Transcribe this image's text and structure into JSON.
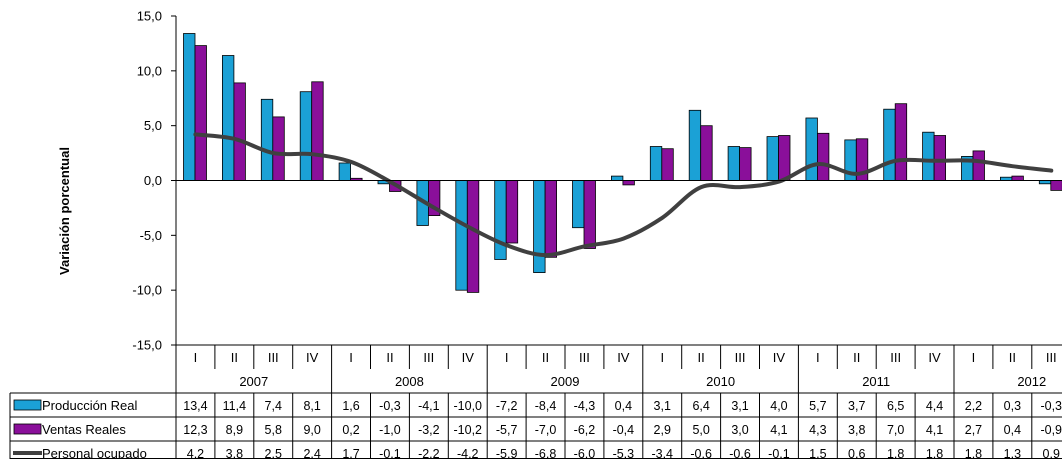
{
  "chart_data": {
    "type": "bar",
    "ylabel": "Variación porcentual",
    "ylim": [
      -15,
      15
    ],
    "yticks": [
      "15,0",
      "10,0",
      "5,0",
      "0,0",
      "-5,0",
      "-10,0",
      "-15,0"
    ],
    "quarter_labels": [
      "I",
      "II",
      "III",
      "IV",
      "I",
      "II",
      "III",
      "IV",
      "I",
      "II",
      "III",
      "IV",
      "I",
      "II",
      "III",
      "IV",
      "I",
      "II",
      "III",
      "IV",
      "I",
      "II",
      "III"
    ],
    "years": [
      {
        "label": "2007",
        "quarters": 4
      },
      {
        "label": "2008",
        "quarters": 4
      },
      {
        "label": "2009",
        "quarters": 4
      },
      {
        "label": "2010",
        "quarters": 4
      },
      {
        "label": "2011",
        "quarters": 4
      },
      {
        "label": "2012",
        "quarters": 3
      }
    ],
    "series": [
      {
        "name": "Producción Real",
        "kind": "bar",
        "color": "#1ba1d6",
        "values": [
          13.4,
          11.4,
          7.4,
          8.1,
          1.6,
          -0.3,
          -4.1,
          -10.0,
          -7.2,
          -8.4,
          -4.3,
          0.4,
          3.1,
          6.4,
          3.1,
          4.0,
          5.7,
          3.7,
          6.5,
          4.4,
          2.2,
          0.3,
          -0.3
        ],
        "labels": [
          "13,4",
          "11,4",
          "7,4",
          "8,1",
          "1,6",
          "-0,3",
          "-4,1",
          "-10,0",
          "-7,2",
          "-8,4",
          "-4,3",
          "0,4",
          "3,1",
          "6,4",
          "3,1",
          "4,0",
          "5,7",
          "3,7",
          "6,5",
          "4,4",
          "2,2",
          "0,3",
          "-0,3"
        ]
      },
      {
        "name": "Ventas Reales",
        "kind": "bar",
        "color": "#8a0f9a",
        "values": [
          12.3,
          8.9,
          5.8,
          9.0,
          0.2,
          -1.0,
          -3.2,
          -10.2,
          -5.7,
          -7.0,
          -6.2,
          -0.4,
          2.9,
          5.0,
          3.0,
          4.1,
          4.3,
          3.8,
          7.0,
          4.1,
          2.7,
          0.4,
          -0.9
        ],
        "labels": [
          "12,3",
          "8,9",
          "5,8",
          "9,0",
          "0,2",
          "-1,0",
          "-3,2",
          "-10,2",
          "-5,7",
          "-7,0",
          "-6,2",
          "-0,4",
          "2,9",
          "5,0",
          "3,0",
          "4,1",
          "4,3",
          "3,8",
          "7,0",
          "4,1",
          "2,7",
          "0,4",
          "-0,9"
        ]
      },
      {
        "name": "Personal ocupado",
        "kind": "line",
        "color": "#404040",
        "values": [
          4.2,
          3.8,
          2.5,
          2.4,
          1.7,
          -0.1,
          -2.2,
          -4.2,
          -5.9,
          -6.8,
          -6.0,
          -5.3,
          -3.4,
          -0.6,
          -0.6,
          -0.1,
          1.5,
          0.6,
          1.8,
          1.8,
          1.8,
          1.3,
          0.9
        ],
        "labels": [
          "4,2",
          "3,8",
          "2,5",
          "2,4",
          "1,7",
          "-0,1",
          "-2,2",
          "-4,2",
          "-5,9",
          "-6,8",
          "-6,0",
          "-5,3",
          "-3,4",
          "-0,6",
          "-0,6",
          "-0,1",
          "1,5",
          "0,6",
          "1,8",
          "1,8",
          "1,8",
          "1,3",
          "0,9"
        ]
      }
    ],
    "grid": false,
    "legend": "data-table-left"
  }
}
